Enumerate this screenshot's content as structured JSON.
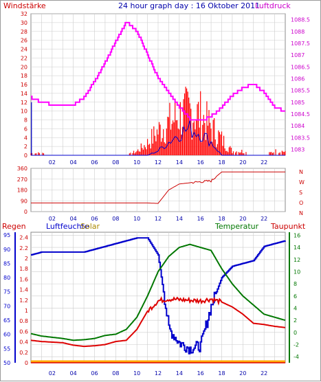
{
  "header": {
    "title": "24 hour graph day : 16 Oktober 2011",
    "left_label": "Windstärke",
    "right_label": "Luftdruck"
  },
  "panel1": {
    "left_ticks": [
      "0",
      "2",
      "4",
      "6",
      "8",
      "10",
      "12",
      "14",
      "16",
      "18",
      "20",
      "22",
      "24",
      "26",
      "28",
      "30",
      "32"
    ],
    "right_ticks": [
      "1083",
      "1083.5",
      "1084",
      "1084.5",
      "1085",
      "1085.5",
      "1086",
      "1086.5",
      "1087",
      "1087.5",
      "1088",
      "1088.5"
    ],
    "x_ticks": [
      "02",
      "04",
      "06",
      "08",
      "10",
      "12",
      "14",
      "16",
      "18",
      "20",
      "22"
    ]
  },
  "panel2": {
    "left_ticks": [
      "0",
      "90",
      "180",
      "270",
      "360"
    ],
    "right_letters": [
      "N",
      "W",
      "S",
      "O",
      "N"
    ],
    "x_ticks": [
      "02",
      "04",
      "06",
      "08",
      "10",
      "12",
      "14",
      "16",
      "18",
      "20",
      "22"
    ]
  },
  "panel3": {
    "labels": {
      "regen": "Regen",
      "luftfeuchte": "Luftfeuchte",
      "solar": "Solar",
      "temperatur": "Temperatur",
      "taupunkt": "Taupunkt"
    },
    "left_ticks_humidity": [
      "50",
      "55",
      "60",
      "65",
      "70",
      "75",
      "80",
      "85",
      "90",
      "95"
    ],
    "left_ticks_rain": [
      "0",
      "0.2",
      "0.4",
      "0.6",
      "0.8",
      "1",
      "1.2",
      "1.4",
      "1.6",
      "1.8",
      "2",
      "2.2",
      "2.4"
    ],
    "right_ticks": [
      "-4",
      "-2",
      "0",
      "2",
      "4",
      "6",
      "8",
      "10",
      "12",
      "14",
      "16"
    ],
    "x_ticks": [
      "02",
      "04",
      "06",
      "08",
      "10",
      "12",
      "14",
      "16",
      "18",
      "20",
      "22"
    ]
  },
  "colors": {
    "wind": "#ff0000",
    "gust_blue": "#0000cc",
    "pressure": "#ff00ff",
    "direction": "#cc0000",
    "humidity": "#0000cc",
    "temperature": "#007700",
    "dewpoint": "#dd0000",
    "solar": "#ffaa00",
    "axis_left": "#cc0000",
    "axis_right": "#cc00cc",
    "axis_blue": "#0000cc",
    "axis_green": "#007700",
    "grid": "#cccccc"
  },
  "chart_data": [
    {
      "type": "line",
      "title": "24 hour graph day : 16 Oktober 2011",
      "ylabel": "Windstärke",
      "y2label": "Luftdruck",
      "x": [
        0,
        1,
        2,
        3,
        4,
        5,
        6,
        7,
        8,
        9,
        10,
        11,
        12,
        13,
        14,
        15,
        16,
        17,
        18,
        19,
        20,
        21,
        22,
        23,
        24
      ],
      "ylim": [
        0,
        32
      ],
      "y2lim": [
        1082.75,
        1088.75
      ],
      "series": [
        {
          "name": "Luftdruck",
          "axis": "right",
          "values": [
            1085.2,
            1085.0,
            1084.9,
            1084.9,
            1084.9,
            1085.2,
            1085.9,
            1086.7,
            1087.6,
            1088.4,
            1088.0,
            1087.0,
            1086.0,
            1085.4,
            1084.8,
            1084.3,
            1084.2,
            1084.4,
            1084.8,
            1085.3,
            1085.6,
            1085.8,
            1085.4,
            1084.8,
            1084.6
          ]
        },
        {
          "axis": "left",
          "values": [
            0.5,
            0.5,
            0,
            0,
            0,
            0,
            0,
            0,
            0,
            0,
            1,
            3,
            6,
            8,
            10,
            11,
            10,
            7,
            4,
            1,
            1,
            0,
            0,
            1,
            1
          ]
        },
        {
          "axis": "left",
          "values": [
            0,
            0,
            0,
            0,
            0,
            0,
            0,
            0,
            0,
            0,
            0,
            0,
            1,
            3,
            5,
            6,
            5,
            3,
            0,
            0,
            0,
            0,
            0,
            0,
            0
          ]
        }
      ]
    },
    {
      "type": "line",
      "x": [
        0,
        1,
        2,
        3,
        4,
        5,
        6,
        7,
        8,
        9,
        10,
        11,
        12,
        13,
        14,
        15,
        16,
        17,
        18,
        19,
        20,
        21,
        22,
        23,
        24
      ],
      "ylim": [
        0,
        360
      ],
      "values": [
        72,
        72,
        72,
        72,
        72,
        72,
        72,
        72,
        72,
        72,
        72,
        72,
        68,
        180,
        230,
        240,
        248,
        255,
        330,
        330,
        330,
        330,
        330,
        330,
        330
      ]
    },
    {
      "type": "line",
      "x": [
        0,
        1,
        2,
        3,
        4,
        5,
        6,
        7,
        8,
        9,
        10,
        11,
        12,
        13,
        14,
        15,
        16,
        17,
        18,
        19,
        20,
        21,
        22,
        23,
        24
      ],
      "series": [
        {
          "name": "Luftfeuchte",
          "axis": "left",
          "ylim": [
            50,
            96
          ],
          "values": [
            88,
            89,
            89,
            89,
            89,
            89,
            90,
            91,
            92,
            93,
            94,
            94,
            88,
            62,
            57,
            55,
            56,
            70,
            80,
            84,
            85,
            86,
            91,
            92,
            93
          ]
        },
        {
          "name": "Temperatur",
          "axis": "right",
          "ylim": [
            -5,
            16.5
          ],
          "values": [
            -0.2,
            -0.6,
            -0.8,
            -1.0,
            -1.3,
            -1.2,
            -1.0,
            -0.5,
            -0.3,
            0.5,
            2.5,
            6.0,
            10.0,
            12.5,
            14.0,
            14.5,
            14.0,
            13.5,
            10.5,
            8.0,
            6.0,
            4.5,
            3.0,
            2.5,
            2.0
          ]
        },
        {
          "name": "Taupunkt",
          "axis": "right",
          "ylim": [
            -5,
            16.5
          ],
          "values": [
            -1.3,
            -1.5,
            -1.6,
            -1.7,
            -2.1,
            -2.3,
            -2.2,
            -2.0,
            -1.5,
            -1.3,
            0.5,
            3.5,
            5.2,
            5.5,
            5.4,
            5.3,
            5.2,
            5.5,
            5.0,
            4.2,
            3.0,
            1.5,
            1.3,
            1.0,
            0.8
          ]
        },
        {
          "name": "Regen",
          "axis": "left-inner",
          "ylim": [
            0,
            2.5
          ],
          "values": [
            0,
            0,
            0,
            0,
            0,
            0,
            0,
            0,
            0,
            0,
            0,
            0,
            0,
            0,
            0,
            0,
            0,
            0,
            0,
            0,
            0,
            0,
            0,
            0,
            0
          ]
        },
        {
          "name": "Solar",
          "values": [
            0,
            0,
            0,
            0,
            0,
            0,
            0,
            0,
            0,
            0,
            0,
            0,
            0,
            0,
            0,
            0,
            0,
            0,
            0,
            0,
            0,
            0,
            0,
            0,
            0
          ]
        }
      ]
    }
  ]
}
